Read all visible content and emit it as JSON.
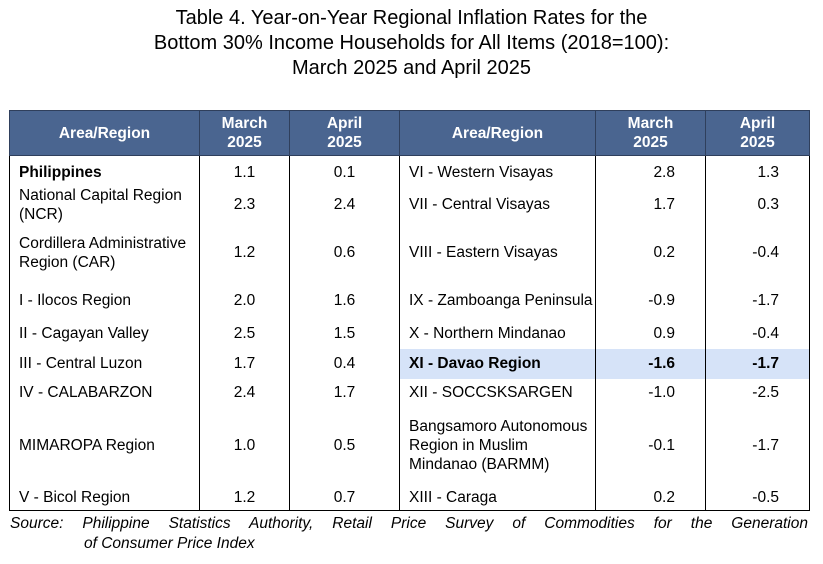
{
  "title": {
    "line1": "Table 4. Year-on-Year Regional Inflation Rates for the",
    "line2": "Bottom 30% Income Households for All Items (2018=100):",
    "line3": "March 2025 and April 2025"
  },
  "header": {
    "area": "Area/Region",
    "march_line1": "March",
    "march_line2": "2025",
    "april_line1": "April",
    "april_line2": "2025"
  },
  "rows": [
    {
      "left_name": "Philippines",
      "left_march": "1.1",
      "left_april": "0.1",
      "right_name": "VI - Western Visayas",
      "right_march": "2.8",
      "right_april": "1.3"
    },
    {
      "left_name": "National Capital Region (NCR)",
      "left_march": "2.3",
      "left_april": "2.4",
      "right_name": "VII - Central Visayas",
      "right_march": "1.7",
      "right_april": "0.3"
    },
    {
      "left_name": "Cordillera Administrative Region (CAR)",
      "left_march": "1.2",
      "left_april": "0.6",
      "right_name": "VIII - Eastern Visayas",
      "right_march": "0.2",
      "right_april": "-0.4"
    },
    {
      "left_name": "I - Ilocos Region",
      "left_march": "2.0",
      "left_april": "1.6",
      "right_name": "IX - Zamboanga Peninsula",
      "right_march": "-0.9",
      "right_april": "-1.7"
    },
    {
      "left_name": "II - Cagayan Valley",
      "left_march": "2.5",
      "left_april": "1.5",
      "right_name": "X - Northern Mindanao",
      "right_march": "0.9",
      "right_april": "-0.4"
    },
    {
      "left_name": "III - Central Luzon",
      "left_march": "1.7",
      "left_april": "0.4",
      "right_name": "XI - Davao Region",
      "right_march": "-1.6",
      "right_april": "-1.7"
    },
    {
      "left_name": "IV - CALABARZON",
      "left_march": "2.4",
      "left_april": "1.7",
      "right_name": "XII - SOCCSKSARGEN",
      "right_march": "-1.0",
      "right_april": "-2.5"
    },
    {
      "left_name": "MIMAROPA Region",
      "left_march": "1.0",
      "left_april": "0.5",
      "right_name": "Bangsamoro Autonomous Region in Muslim Mindanao (BARMM)",
      "right_march": "-0.1",
      "right_april": "-1.7"
    },
    {
      "left_name": "V - Bicol Region",
      "left_march": "1.2",
      "left_april": "0.7",
      "right_name": "XIII - Caraga",
      "right_march": "0.2",
      "right_april": "-0.5"
    }
  ],
  "highlight_color": "#d6e3f8",
  "header_color": "#4a6590",
  "source": {
    "line1": "Source:  Philippine Statistics Authority, Retail Price Survey of Commodities for the Generation",
    "line2": "of Consumer Price Index"
  }
}
